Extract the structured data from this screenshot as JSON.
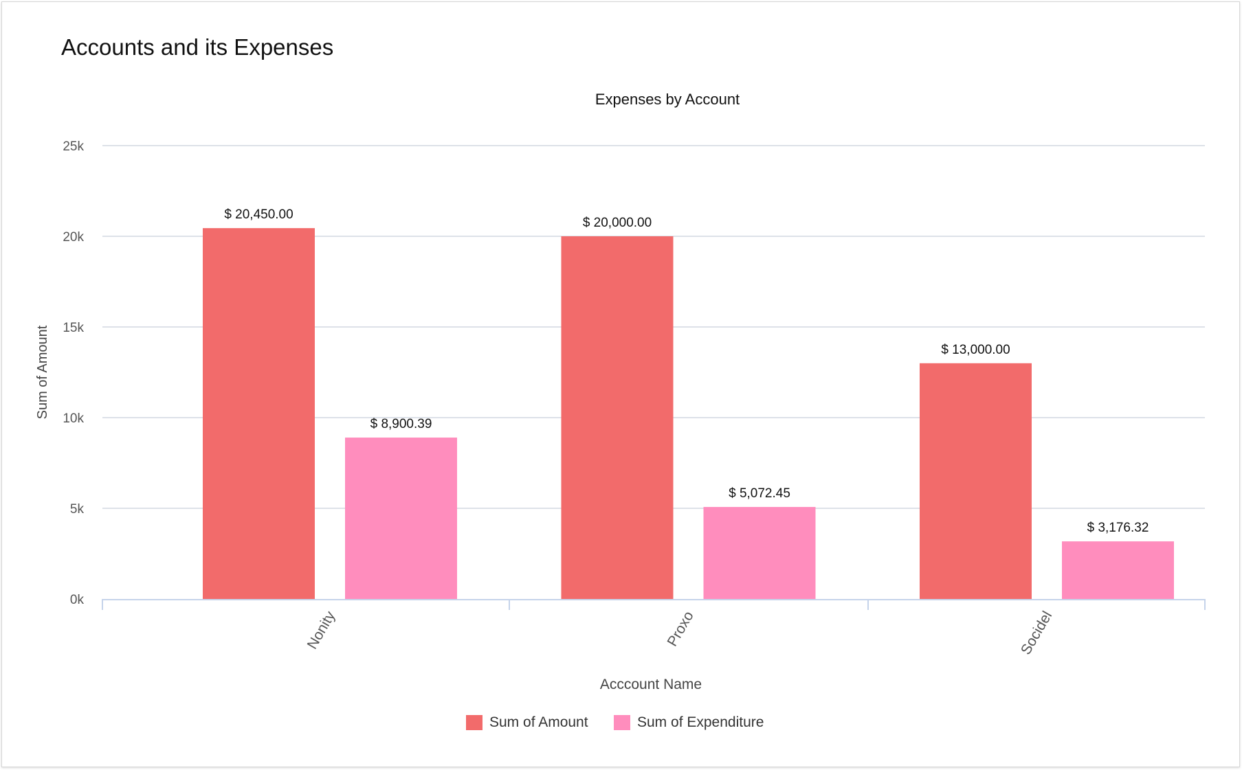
{
  "page_title": "Accounts and its Expenses",
  "chart_data": {
    "type": "bar",
    "title": "Expenses by Account",
    "xlabel": "Acccount Name",
    "ylabel": "Sum of Amount",
    "ylim": [
      0,
      25000
    ],
    "yticks": [
      0,
      5000,
      10000,
      15000,
      20000,
      25000
    ],
    "ytick_labels": [
      "0k",
      "5k",
      "10k",
      "15k",
      "20k",
      "25k"
    ],
    "grid": true,
    "legend_position": "bottom-center",
    "categories": [
      "Nonity",
      "Proxo",
      "Socidel"
    ],
    "series": [
      {
        "name": "Sum of Amount",
        "color": "#F26B6B",
        "values": [
          20450.0,
          20000.0,
          13000.0
        ],
        "labels": [
          "$ 20,450.00",
          "$ 20,000.00",
          "$ 13,000.00"
        ]
      },
      {
        "name": "Sum of Expenditure",
        "color": "#FF8DBD",
        "values": [
          8900.39,
          5072.45,
          3176.32
        ],
        "labels": [
          "$ 8,900.39",
          "$ 5,072.45",
          "$ 3,176.32"
        ]
      }
    ]
  }
}
